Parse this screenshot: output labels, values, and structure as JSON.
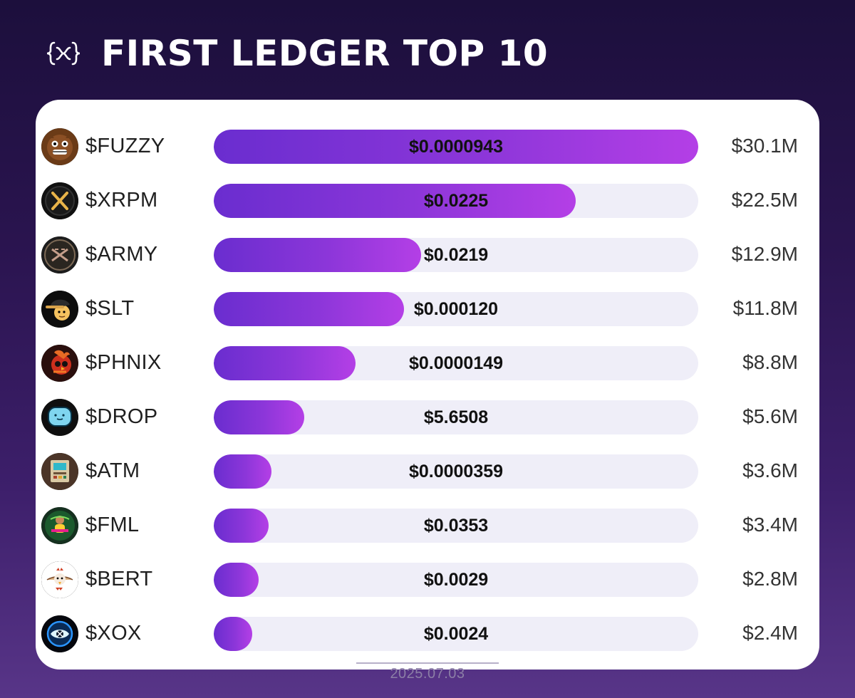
{
  "header": {
    "title": "FIRST LEDGER TOP 10",
    "logo_icon": "xrpl-brackets-icon"
  },
  "footer": {
    "date": "2025.07.03"
  },
  "colors": {
    "background_top": "#1c0f3c",
    "background_bottom": "#583588",
    "card": "#ffffff",
    "track": "#efeef8",
    "bar_start": "#6a2dcf",
    "bar_end": "#b43fe6"
  },
  "chart_data": {
    "type": "bar",
    "orientation": "horizontal",
    "categories": [
      "$FUZZY",
      "$XRPM",
      "$ARMY",
      "$SLT",
      "$PHNIX",
      "$DROP",
      "$ATM",
      "$FML",
      "$BERT",
      "$XOX"
    ],
    "series": [
      {
        "values": [
          30.1,
          22.5,
          12.9,
          11.8,
          8.8,
          5.6,
          3.6,
          3.4,
          2.8,
          2.4
        ]
      }
    ],
    "value_labels": [
      "$30.1M",
      "$22.5M",
      "$12.9M",
      "$11.8M",
      "$8.8M",
      "$5.6M",
      "$3.6M",
      "$3.4M",
      "$2.8M",
      "$2.4M"
    ],
    "price_labels": [
      "$0.0000943",
      "$0.0225",
      "$0.0219",
      "$0.000120",
      "$0.0000149",
      "$5.6508",
      "$0.0000359",
      "$0.0353",
      "$0.0029",
      "$0.0024"
    ],
    "icons": [
      "fuzzy-bear-icon",
      "xrpm-coin-icon",
      "army-logo-icon",
      "slt-cap-icon",
      "phnix-bird-icon",
      "drop-face-icon",
      "atm-machine-icon",
      "fml-character-icon",
      "bert-bird-icon",
      "xox-eye-icon"
    ],
    "xlim": [
      0,
      30.1
    ],
    "grid": false,
    "legend": "none",
    "title": "FIRST LEDGER TOP 10"
  }
}
